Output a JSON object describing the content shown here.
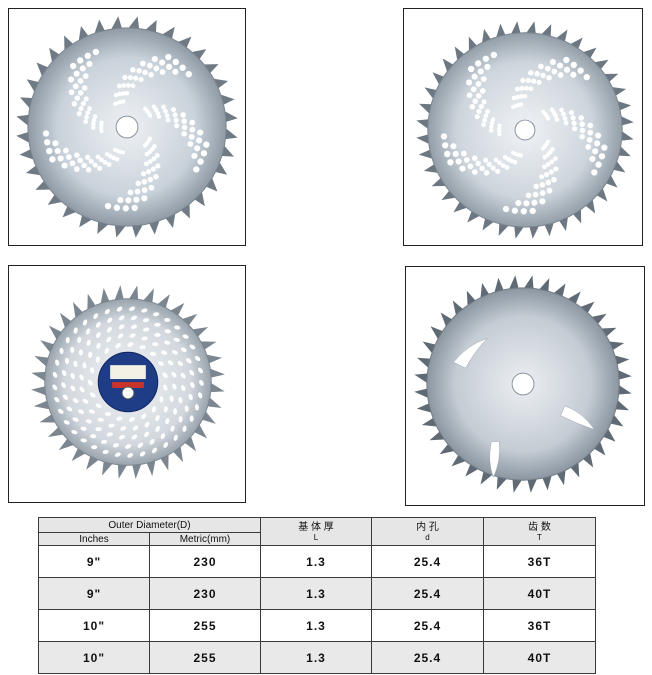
{
  "images": [
    {
      "icon": "saw-blade-swirl-holes",
      "blade_color": "#c9d2da"
    },
    {
      "icon": "saw-blade-swirl-holes",
      "blade_color": "#cdd5dc"
    },
    {
      "icon": "saw-blade-with-label",
      "blade_color": "#d2d8de",
      "label_color": "#1e3d86"
    },
    {
      "icon": "saw-blade-curved-slots",
      "blade_color": "#c4ccd4"
    }
  ],
  "table": {
    "outer_diameter": "Outer Diameter(D)",
    "col_inches": "Inches",
    "col_metric": "Metric(mm)",
    "col_thickness": "基 体 厚",
    "col_thickness_sym": "L",
    "col_bore": "内 孔",
    "col_bore_sym": "d",
    "col_teeth": "齿 数",
    "col_teeth_sym": "T",
    "rows": [
      {
        "inches": "9\"",
        "metric": "230",
        "thickness": "1.3",
        "bore": "25.4",
        "teeth": "36T"
      },
      {
        "inches": "9\"",
        "metric": "230",
        "thickness": "1.3",
        "bore": "25.4",
        "teeth": "40T"
      },
      {
        "inches": "10\"",
        "metric": "255",
        "thickness": "1.3",
        "bore": "25.4",
        "teeth": "36T"
      },
      {
        "inches": "10\"",
        "metric": "255",
        "thickness": "1.3",
        "bore": "25.4",
        "teeth": "40T"
      }
    ]
  }
}
